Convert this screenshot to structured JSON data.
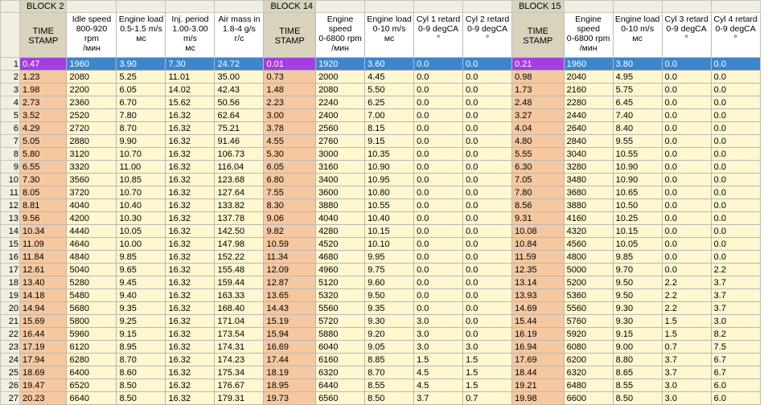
{
  "window": {
    "name": "engine-log-table"
  },
  "blocks": [
    {
      "label": "BLOCK 2",
      "start_col": 1
    },
    {
      "label": "BLOCK 14",
      "start_col": 6
    },
    {
      "label": "BLOCK 15",
      "start_col": 11
    }
  ],
  "columns": [
    {
      "key": "ts2",
      "header": "TIME\nSTAMP",
      "type": "timestamp",
      "width": 52
    },
    {
      "key": "idle",
      "header": "Idle speed\n800-920 rpm\n/мин",
      "type": "value",
      "width": 62
    },
    {
      "key": "load",
      "header": "Engine load\n0.5-1.5 m/s\nмс",
      "type": "value",
      "width": 61
    },
    {
      "key": "inj",
      "header": "Inj. period\n1.00-3.00\nm/s\nмс",
      "type": "value",
      "width": 61
    },
    {
      "key": "air",
      "header": "Air mass in\n1.8-4 g/s\nг/с",
      "type": "value",
      "width": 61
    },
    {
      "key": "ts14",
      "header": "TIME\nSTAMP",
      "type": "timestamp",
      "width": 59
    },
    {
      "key": "spd14",
      "header": "Engine\nspeed\n0-6800 rpm\n/мин",
      "type": "value",
      "width": 61
    },
    {
      "key": "load14",
      "header": "Engine load\n0-10 m/s\nмс",
      "type": "value",
      "width": 61
    },
    {
      "key": "cyl1",
      "header": "Cyl 1 retard\n0-9 degCA\n°",
      "type": "value",
      "width": 61
    },
    {
      "key": "cyl2",
      "header": "Cyl 2 retard\n0-9 degCA\n°",
      "type": "value",
      "width": 61
    },
    {
      "key": "ts15",
      "header": "TIME\nSTAMP",
      "type": "timestamp",
      "width": 58
    },
    {
      "key": "spd15",
      "header": "Engine\nspeed\n0-6800 rpm\n/мин",
      "type": "value",
      "width": 61
    },
    {
      "key": "load15",
      "header": "Engine load\n0-10 m/s\nмс",
      "type": "value",
      "width": 61
    },
    {
      "key": "cyl3",
      "header": "Cyl 3 retard\n0-9 degCA\n°",
      "type": "value",
      "width": 61
    },
    {
      "key": "cyl4",
      "header": "Cyl 4 retard\n0-9 degCA\n°",
      "type": "value",
      "width": 61
    }
  ],
  "selected_row": 1,
  "rows": [
    [
      "0.47",
      "1960",
      "3.90",
      "7.30",
      "24.72",
      "0.01",
      "1920",
      "3.60",
      "0.0",
      "0.0",
      "0.21",
      "1960",
      "3.80",
      "0.0",
      "0.0"
    ],
    [
      "1.23",
      "2080",
      "5.25",
      "11.01",
      "35.00",
      "0.73",
      "2000",
      "4.45",
      "0.0",
      "0.0",
      "0.98",
      "2040",
      "4.95",
      "0.0",
      "0.0"
    ],
    [
      "1.98",
      "2200",
      "6.05",
      "14.02",
      "42.43",
      "1.48",
      "2080",
      "5.50",
      "0.0",
      "0.0",
      "1.73",
      "2160",
      "5.75",
      "0.0",
      "0.0"
    ],
    [
      "2.73",
      "2360",
      "6.70",
      "15.62",
      "50.56",
      "2.23",
      "2240",
      "6.25",
      "0.0",
      "0.0",
      "2.48",
      "2280",
      "6.45",
      "0.0",
      "0.0"
    ],
    [
      "3.52",
      "2520",
      "7.80",
      "16.32",
      "62.64",
      "3.00",
      "2400",
      "7.00",
      "0.0",
      "0.0",
      "3.27",
      "2440",
      "7.40",
      "0.0",
      "0.0"
    ],
    [
      "4.29",
      "2720",
      "8.70",
      "16.32",
      "75.21",
      "3.78",
      "2560",
      "8.15",
      "0.0",
      "0.0",
      "4.04",
      "2640",
      "8.40",
      "0.0",
      "0.0"
    ],
    [
      "5.05",
      "2880",
      "9.90",
      "16.32",
      "91.46",
      "4.55",
      "2760",
      "9.15",
      "0.0",
      "0.0",
      "4.80",
      "2840",
      "9.55",
      "0.0",
      "0.0"
    ],
    [
      "5.80",
      "3120",
      "10.70",
      "16.32",
      "106.73",
      "5.30",
      "3000",
      "10.35",
      "0.0",
      "0.0",
      "5.55",
      "3040",
      "10.55",
      "0.0",
      "0.0"
    ],
    [
      "6.55",
      "3320",
      "11.00",
      "16.32",
      "116.04",
      "6.05",
      "3160",
      "10.90",
      "0.0",
      "0.0",
      "6.30",
      "3280",
      "10.90",
      "0.0",
      "0.0"
    ],
    [
      "7.30",
      "3560",
      "10.85",
      "16.32",
      "123.68",
      "6.80",
      "3400",
      "10.95",
      "0.0",
      "0.0",
      "7.05",
      "3480",
      "10.90",
      "0.0",
      "0.0"
    ],
    [
      "8.05",
      "3720",
      "10.70",
      "16.32",
      "127.64",
      "7.55",
      "3600",
      "10.80",
      "0.0",
      "0.0",
      "7.80",
      "3680",
      "10.65",
      "0.0",
      "0.0"
    ],
    [
      "8.81",
      "4040",
      "10.40",
      "16.32",
      "133.82",
      "8.30",
      "3880",
      "10.55",
      "0.0",
      "0.0",
      "8.56",
      "3880",
      "10.50",
      "0.0",
      "0.0"
    ],
    [
      "9.56",
      "4200",
      "10.30",
      "16.32",
      "137.78",
      "9.06",
      "4040",
      "10.40",
      "0.0",
      "0.0",
      "9.31",
      "4160",
      "10.25",
      "0.0",
      "0.0"
    ],
    [
      "10.34",
      "4440",
      "10.05",
      "16.32",
      "142.50",
      "9.82",
      "4280",
      "10.15",
      "0.0",
      "0.0",
      "10.08",
      "4320",
      "10.15",
      "0.0",
      "0.0"
    ],
    [
      "11.09",
      "4640",
      "10.00",
      "16.32",
      "147.98",
      "10.59",
      "4520",
      "10.10",
      "0.0",
      "0.0",
      "10.84",
      "4560",
      "10.05",
      "0.0",
      "0.0"
    ],
    [
      "11.84",
      "4840",
      "9.85",
      "16.32",
      "152.22",
      "11.34",
      "4680",
      "9.95",
      "0.0",
      "0.0",
      "11.59",
      "4800",
      "9.85",
      "0.0",
      "0.0"
    ],
    [
      "12.61",
      "5040",
      "9.65",
      "16.32",
      "155.48",
      "12.09",
      "4960",
      "9.75",
      "0.0",
      "0.0",
      "12.35",
      "5000",
      "9.70",
      "0.0",
      "2.2"
    ],
    [
      "13.40",
      "5280",
      "9.45",
      "16.32",
      "159.44",
      "12.87",
      "5120",
      "9.60",
      "0.0",
      "0.0",
      "13.14",
      "5200",
      "9.50",
      "2.2",
      "3.7"
    ],
    [
      "14.18",
      "5480",
      "9.40",
      "16.32",
      "163.33",
      "13.65",
      "5320",
      "9.50",
      "0.0",
      "0.0",
      "13.93",
      "5360",
      "9.50",
      "2.2",
      "3.7"
    ],
    [
      "14.94",
      "5680",
      "9.35",
      "16.32",
      "168.40",
      "14.43",
      "5560",
      "9.35",
      "0.0",
      "0.0",
      "14.69",
      "5560",
      "9.30",
      "2.2",
      "3.7"
    ],
    [
      "15.69",
      "5800",
      "9.25",
      "16.32",
      "171.04",
      "15.19",
      "5720",
      "9.30",
      "3.0",
      "0.0",
      "15.44",
      "5760",
      "9.30",
      "1.5",
      "3.0"
    ],
    [
      "16.44",
      "5960",
      "9.15",
      "16.32",
      "173.54",
      "15.94",
      "5880",
      "9.20",
      "3.0",
      "0.0",
      "16.19",
      "5920",
      "9.15",
      "1.5",
      "8.2"
    ],
    [
      "17.19",
      "6120",
      "8.95",
      "16.32",
      "174.31",
      "16.69",
      "6040",
      "9.05",
      "3.0",
      "3.0",
      "16.94",
      "6080",
      "9.00",
      "0.7",
      "7.5"
    ],
    [
      "17.94",
      "6280",
      "8.70",
      "16.32",
      "174.23",
      "17.44",
      "6160",
      "8.85",
      "1.5",
      "1.5",
      "17.69",
      "6200",
      "8.80",
      "3.7",
      "6.7"
    ],
    [
      "18.69",
      "6400",
      "8.60",
      "16.32",
      "175.34",
      "18.19",
      "6320",
      "8.70",
      "4.5",
      "1.5",
      "18.44",
      "6320",
      "8.65",
      "3.7",
      "6.7"
    ],
    [
      "19.47",
      "6520",
      "8.50",
      "16.32",
      "176.67",
      "18.95",
      "6440",
      "8.55",
      "4.5",
      "1.5",
      "19.21",
      "6480",
      "8.55",
      "3.0",
      "6.0"
    ],
    [
      "20.23",
      "6640",
      "8.50",
      "16.32",
      "179.31",
      "19.73",
      "6560",
      "8.50",
      "3.7",
      "0.7",
      "19.98",
      "6600",
      "8.50",
      "3.0",
      "6.0"
    ]
  ]
}
